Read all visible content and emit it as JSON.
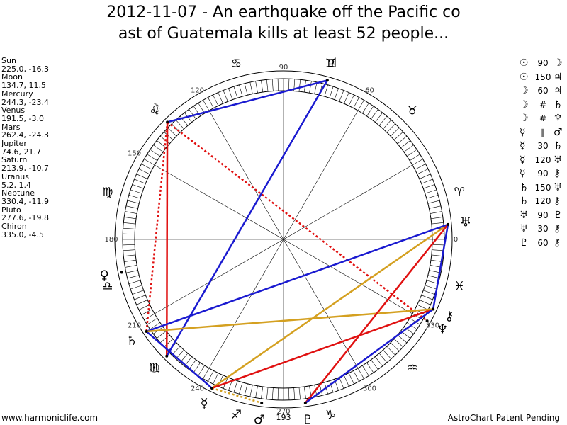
{
  "title": [
    "2012-11-07 - An earthquake off the Pacific co",
    "ast of Guatemala kills at least 52 people..."
  ],
  "planets": [
    {
      "name": "Sun",
      "glyph": "☉",
      "label": "225.0, -16.3",
      "lon": 225.0
    },
    {
      "name": "Moon",
      "glyph": "☽",
      "label": "134.7, 11.5",
      "lon": 134.7
    },
    {
      "name": "Mercury",
      "glyph": "☿",
      "label": "244.3, -23.4",
      "lon": 244.3
    },
    {
      "name": "Venus",
      "glyph": "♀",
      "label": "191.5, -3.0",
      "lon": 191.5
    },
    {
      "name": "Mars",
      "glyph": "♂",
      "label": "262.4, -24.3",
      "lon": 262.4
    },
    {
      "name": "Jupiter",
      "glyph": "♃",
      "label": "74.6, 21.7",
      "lon": 74.6
    },
    {
      "name": "Saturn",
      "glyph": "♄",
      "label": "213.9, -10.7",
      "lon": 213.9
    },
    {
      "name": "Uranus",
      "glyph": "♅",
      "label": "5.2, 1.4",
      "lon": 5.2
    },
    {
      "name": "Neptune",
      "glyph": "♆",
      "label": "330.4, -11.9",
      "lon": 330.4
    },
    {
      "name": "Pluto",
      "glyph": "♇",
      "label": "277.6, -19.8",
      "lon": 277.6
    },
    {
      "name": "Chiron",
      "glyph": "⚷",
      "label": "335.0, -4.5",
      "lon": 335.0
    }
  ],
  "signs": [
    "♈",
    "♉",
    "♊",
    "♋",
    "♌",
    "♍",
    "♎",
    "♏",
    "♐",
    "♑",
    "♒",
    "♓"
  ],
  "aspects": [
    {
      "p1": "☉",
      "aspect": 90,
      "p2": "☽"
    },
    {
      "p1": "☉",
      "aspect": 150,
      "p2": "♃"
    },
    {
      "p1": "☽",
      "aspect": 60,
      "p2": "♃"
    },
    {
      "p1": "☽",
      "aspect": "#",
      "p2": "♄"
    },
    {
      "p1": "☽",
      "aspect": "#",
      "p2": "♆"
    },
    {
      "p1": "☿",
      "aspect": "∥",
      "p2": "♂"
    },
    {
      "p1": "☿",
      "aspect": 30,
      "p2": "♄"
    },
    {
      "p1": "☿",
      "aspect": 120,
      "p2": "♅"
    },
    {
      "p1": "☿",
      "aspect": 90,
      "p2": "⚷"
    },
    {
      "p1": "♄",
      "aspect": 150,
      "p2": "♅"
    },
    {
      "p1": "♄",
      "aspect": 120,
      "p2": "⚷"
    },
    {
      "p1": "♅",
      "aspect": 90,
      "p2": "♇"
    },
    {
      "p1": "♅",
      "aspect": 30,
      "p2": "⚷"
    },
    {
      "p1": "♇",
      "aspect": 60,
      "p2": "⚷"
    }
  ],
  "degree_labels": [
    0,
    60,
    90,
    120,
    150,
    180,
    210,
    240,
    270,
    300,
    330
  ],
  "ascendant_label": "193",
  "footer": {
    "left": "www.harmoniclife.com",
    "right": "AstroChart Patent Pending"
  }
}
